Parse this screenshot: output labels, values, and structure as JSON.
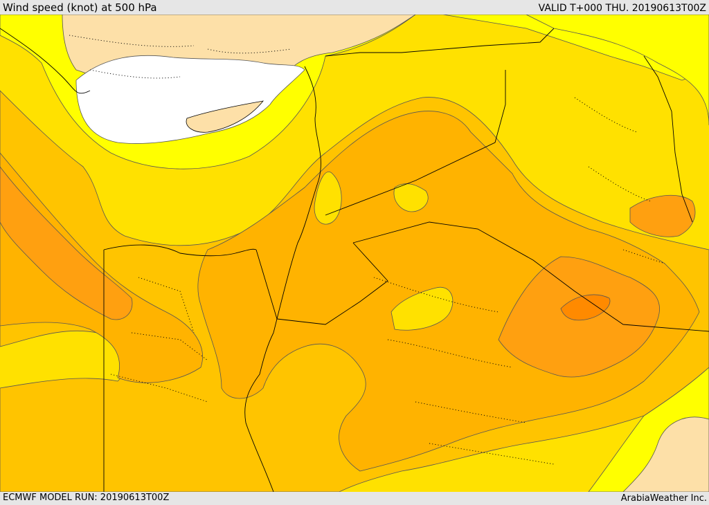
{
  "header": {
    "title": "Wind speed (knot) at 500 hPa",
    "valid": "VALID T+000 THU. 20190613T00Z"
  },
  "footer": {
    "model_run": "ECMWF MODEL RUN: 20190613T00Z",
    "credit": "ArabiaWeather Inc."
  },
  "colors": {
    "calm_white": "#ffffff",
    "tan": "#fde0a8",
    "yellow_bright": "#ffff00",
    "yellow": "#ffe100",
    "gold": "#ffc400",
    "amber": "#ffb300",
    "orange_light": "#ffa010",
    "orange": "#ff8a00",
    "border": "#000000"
  }
}
